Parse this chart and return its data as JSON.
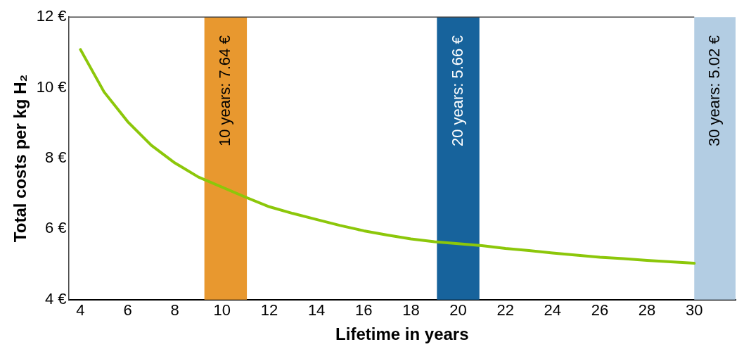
{
  "chart_data": {
    "type": "line",
    "ylabel": "Total costs per kg H₂",
    "xlabel": "Lifetime in years",
    "x": [
      4,
      5,
      6,
      7,
      8,
      9,
      10,
      11,
      12,
      13,
      14,
      15,
      16,
      17,
      18,
      19,
      20,
      21,
      22,
      23,
      24,
      25,
      26,
      27,
      28,
      29,
      30
    ],
    "series": [
      {
        "color": "#8cc70a",
        "values": [
          11.08,
          9.88,
          9.04,
          8.37,
          7.87,
          7.47,
          null,
          6.9,
          6.63,
          6.44,
          6.27,
          6.1,
          5.95,
          5.83,
          5.72,
          5.64,
          null,
          5.53,
          5.45,
          5.39,
          5.32,
          5.26,
          5.2,
          5.16,
          5.11,
          5.07,
          5.03
        ]
      }
    ],
    "xlim": [
      3.5,
      31.75
    ],
    "xticks": [
      4,
      6,
      8,
      10,
      12,
      14,
      16,
      18,
      20,
      22,
      24,
      26,
      28,
      30
    ],
    "ylim": [
      4,
      12
    ],
    "yticks": [
      {
        "value": 4,
        "label": "4 €"
      },
      {
        "value": 6,
        "label": "6 €"
      },
      {
        "value": 8,
        "label": "8 €"
      },
      {
        "value": 10,
        "label": "10 €"
      },
      {
        "value": 12,
        "label": "12 €"
      }
    ],
    "bands": [
      {
        "axis": "x",
        "from": 9.25,
        "to": 11.05,
        "label": "10 years: 7.64 €",
        "color": "#e8982f"
      },
      {
        "axis": "x",
        "from": 19.1,
        "to": 20.9,
        "label": "20 years: 5.66 €",
        "color": "#17639c"
      },
      {
        "axis": "x",
        "from": 30,
        "to": 31.75,
        "label": "30 years: 5.02 €",
        "color": "#b3cde3"
      }
    ],
    "grid": false,
    "legend": false,
    "marker": "none",
    "line_style": "solid"
  }
}
